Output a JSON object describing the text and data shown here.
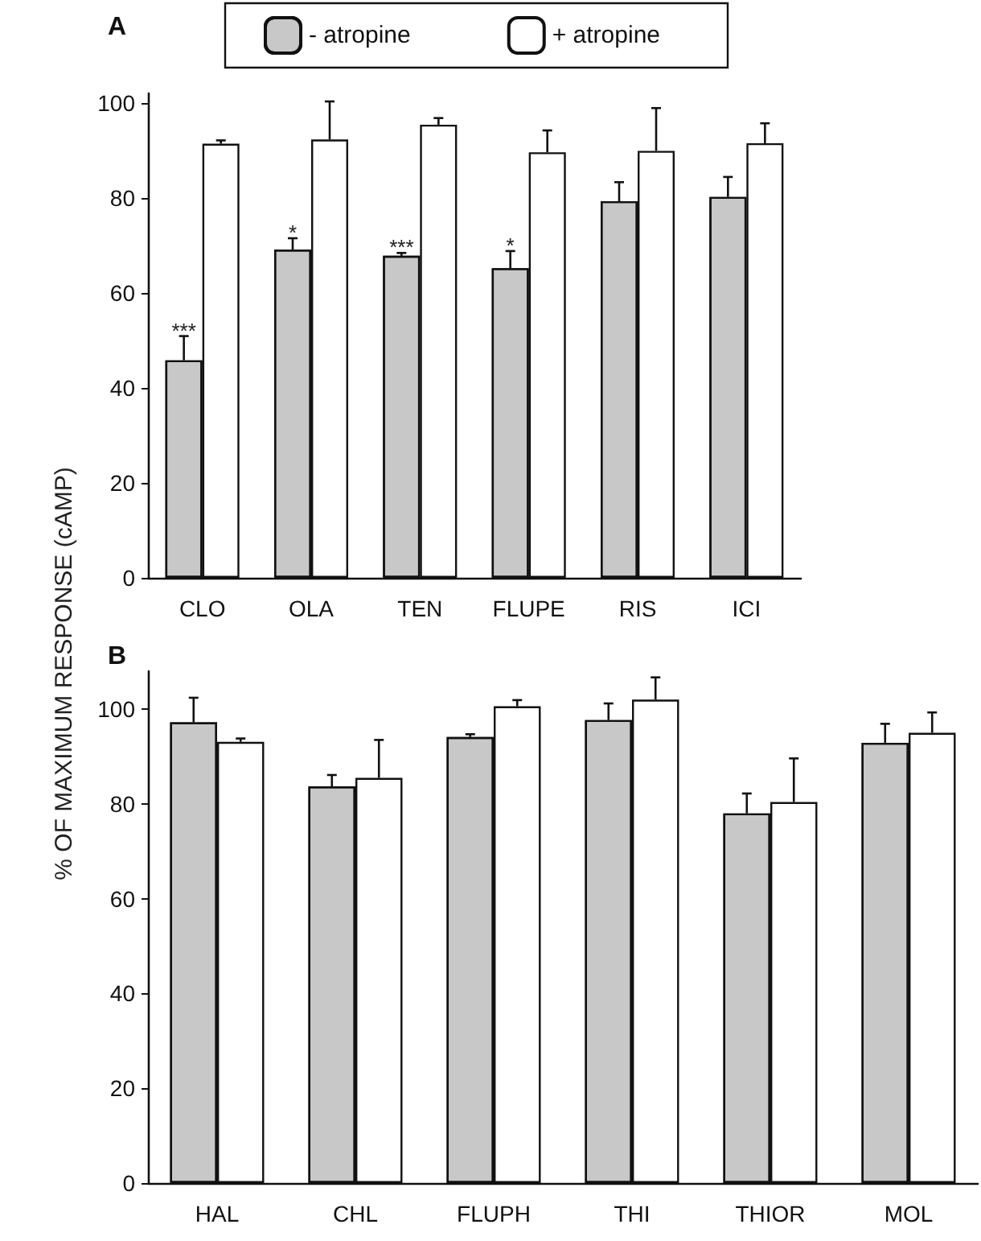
{
  "chart_data": [
    {
      "type": "bar",
      "title": "A",
      "ylabel": "% OF MAXIMUM RESPONSE (cAMP)",
      "categories": [
        "CLO",
        "OLA",
        "TEN",
        "FLUPE",
        "RIS",
        "ICI"
      ],
      "series": [
        {
          "name": "- atropine",
          "color": "#c8c8c8",
          "values": [
            45.8,
            69.1,
            67.8,
            65.2,
            79.3,
            80.2
          ],
          "errors": [
            5.1,
            2.4,
            0.6,
            3.6,
            4,
            4.2
          ]
        },
        {
          "name": "+ atropine",
          "color": "#ffffff",
          "values": [
            91.4,
            92.3,
            95.4,
            89.6,
            89.9,
            91.5
          ],
          "errors": [
            0.7,
            8,
            1.4,
            4.6,
            9,
            4.2
          ]
        }
      ],
      "annotations": [
        {
          "text": "***",
          "x": "CLO",
          "y": 50.9
        },
        {
          "text": "*",
          "x": "OLA",
          "y": 71.5
        },
        {
          "text": "***",
          "x": "TEN",
          "y": 68.4
        },
        {
          "text": "*",
          "x": "FLUPE",
          "y": 68.8
        }
      ],
      "ylim": [
        0,
        102
      ],
      "yticks": [
        0,
        20,
        40,
        60,
        80,
        100
      ],
      "grid": false,
      "legend": "top"
    },
    {
      "type": "bar",
      "title": "B",
      "categories": [
        "HAL",
        "CHL",
        "FLUPH",
        "THI",
        "THIOR",
        "MOL"
      ],
      "series": [
        {
          "color": "#c8c8c8",
          "values": [
            97.2,
            83.7,
            94.1,
            97.7,
            78,
            92.9
          ],
          "errors": [
            5.2,
            2.4,
            0.6,
            3.5,
            4.2,
            4
          ]
        },
        {
          "color": "#ffffff",
          "values": [
            93.1,
            85.5,
            100.6,
            102,
            80.4,
            95
          ],
          "errors": [
            0.7,
            8,
            1.3,
            4.7,
            9.2,
            4.3
          ]
        }
      ],
      "ylim": [
        0,
        108
      ],
      "yticks": [
        0,
        20,
        40,
        60,
        80,
        100
      ],
      "grid": false,
      "legend": false
    }
  ]
}
